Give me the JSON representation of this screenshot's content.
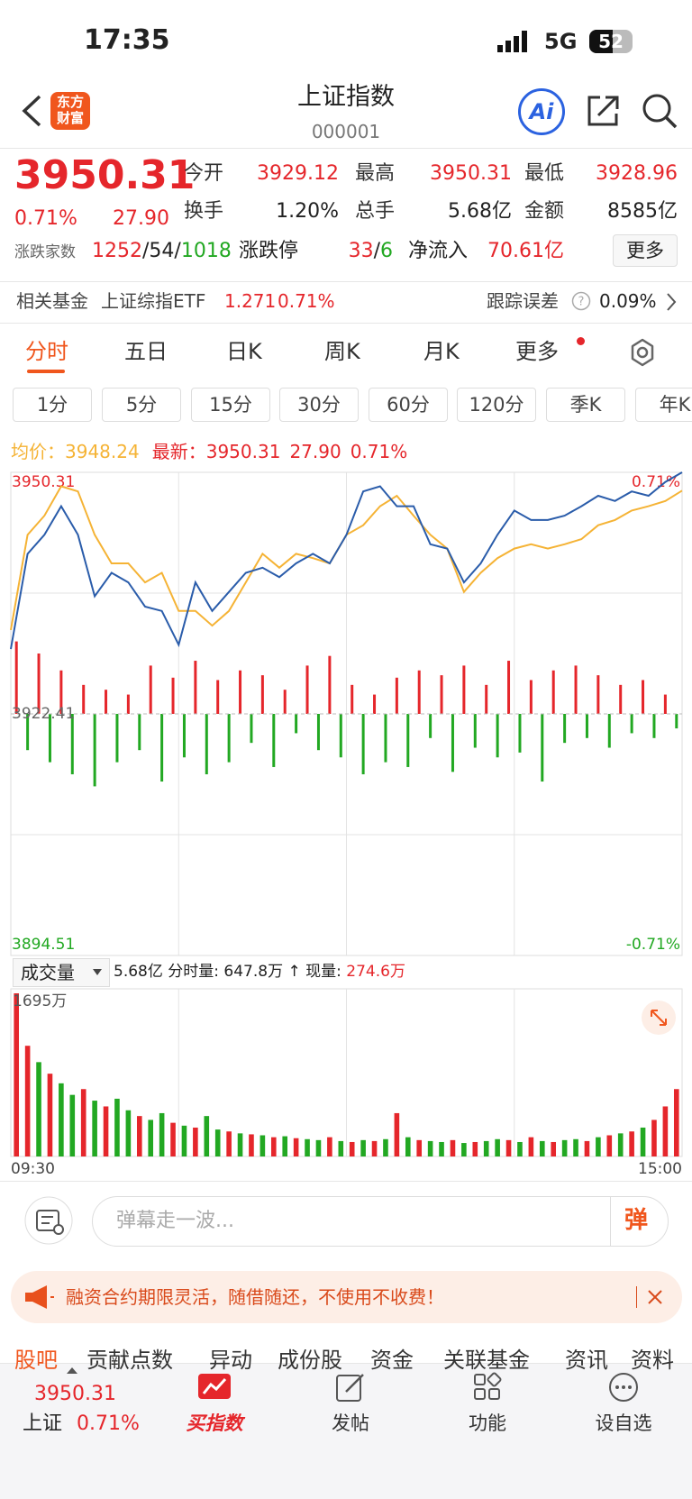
{
  "status": {
    "time": "17:35",
    "network": "5G",
    "battery": "52"
  },
  "header": {
    "logo": [
      "东方",
      "财富"
    ],
    "title": "上证指数",
    "code": "000001",
    "ai": "Ai"
  },
  "quote": {
    "price": "3950.31",
    "change_pct": "0.71%",
    "change": "27.90",
    "stats": [
      {
        "label": "今开",
        "value": "3929.12",
        "color": "#e5262b"
      },
      {
        "label": "最高",
        "value": "3950.31",
        "color": "#e5262b"
      },
      {
        "label": "最低",
        "value": "3928.96",
        "color": "#e5262b"
      },
      {
        "label": "换手",
        "value": "1.20%",
        "color": "#222222"
      },
      {
        "label": "总手",
        "value": "5.68亿",
        "color": "#222222"
      },
      {
        "label": "金额",
        "value": "8585亿",
        "color": "#222222"
      }
    ],
    "breadth_label": "涨跌家数",
    "breadth": [
      "1252",
      "/54/",
      "1018"
    ],
    "limit_label": "涨跌停",
    "limit": [
      "33",
      "/",
      "6"
    ],
    "inflow_label": "净流入",
    "inflow": "70.61亿",
    "more": "更多"
  },
  "fund": {
    "label": "相关基金",
    "name": "上证综指ETF",
    "price": "1.271",
    "pct": "0.71%",
    "err_label": "跟踪误差",
    "err": "0.09%"
  },
  "tabs": [
    "分时",
    "五日",
    "日K",
    "周K",
    "月K",
    "更多"
  ],
  "periods": [
    "1分",
    "5分",
    "15分",
    "30分",
    "60分",
    "120分",
    "季K",
    "年K"
  ],
  "legend": {
    "avg_label": "均价：",
    "avg": "3948.24",
    "last_label": "最新：",
    "last": "3950.31",
    "change": "27.90",
    "pct": "0.71%"
  },
  "chart_data": [
    {
      "type": "line",
      "x": [
        0,
        6,
        12,
        18,
        24,
        30,
        36,
        42,
        48,
        54,
        60,
        66,
        72,
        78,
        84,
        90,
        96,
        102,
        108,
        114,
        120,
        126,
        132,
        138,
        144,
        150,
        156,
        162,
        168,
        174,
        180,
        186,
        192,
        198,
        204,
        210,
        216,
        222,
        228,
        234,
        240
      ],
      "xlim": [
        0,
        240
      ],
      "xgrid": [
        60,
        120,
        180
      ],
      "ylim": [
        3894.51,
        3950.31
      ],
      "yticks": [
        3950.31,
        3922.41,
        3894.51
      ],
      "gridlines": [
        3936.36,
        3908.46
      ],
      "y2lim": [
        -0.71,
        0.71
      ],
      "y2ticks": [
        {
          "value": 0.71,
          "label": "0.71%"
        },
        {
          "value": -0.71,
          "label": "-0.71%"
        }
      ],
      "series": [
        {
          "name": "最新",
          "color": "#2a5caa",
          "values": [
            3929.9,
            3940.9,
            3943.1,
            3946.4,
            3943.1,
            3936.0,
            3938.7,
            3937.6,
            3934.8,
            3934.3,
            3930.4,
            3937.6,
            3934.3,
            3936.5,
            3938.7,
            3939.3,
            3938.2,
            3939.8,
            3940.9,
            3939.8,
            3943.1,
            3948.1,
            3948.7,
            3946.4,
            3946.4,
            3942.0,
            3941.5,
            3937.6,
            3939.8,
            3943.1,
            3945.9,
            3944.8,
            3944.8,
            3945.3,
            3946.4,
            3947.6,
            3947.0,
            3948.1,
            3947.6,
            3949.2,
            3950.31
          ]
        },
        {
          "name": "均价",
          "color": "#f5b335",
          "values": [
            3932.1,
            3943.1,
            3945.3,
            3948.7,
            3948.1,
            3943.1,
            3939.8,
            3939.8,
            3937.6,
            3938.7,
            3934.3,
            3934.3,
            3932.6,
            3934.3,
            3937.6,
            3940.9,
            3939.3,
            3940.9,
            3940.4,
            3939.8,
            3943.1,
            3944.2,
            3946.4,
            3947.6,
            3945.3,
            3943.1,
            3941.5,
            3936.5,
            3938.7,
            3940.4,
            3941.5,
            3942.0,
            3941.5,
            3942.0,
            3942.6,
            3944.2,
            3944.8,
            3945.9,
            3946.4,
            3947.0,
            3948.2
          ]
        }
      ]
    },
    {
      "type": "bar",
      "ylim": [
        -100,
        100
      ],
      "up_color": "#e5262b",
      "down_color": "#22a822",
      "values": [
        30,
        -15,
        25,
        -20,
        18,
        -25,
        12,
        -30,
        10,
        -20,
        8,
        -15,
        20,
        -28,
        15,
        -18,
        22,
        -25,
        14,
        -20,
        18,
        -12,
        16,
        -22,
        10,
        -8,
        20,
        -15,
        24,
        -18,
        12,
        -25,
        8,
        -20,
        15,
        -22,
        18,
        -10,
        16,
        -24,
        20,
        -14,
        12,
        -18,
        22,
        -16,
        14,
        -28,
        18,
        -12,
        20,
        -10,
        16,
        -14,
        12,
        -8,
        14,
        -10,
        8,
        -6
      ]
    },
    {
      "type": "bar",
      "ylim": [
        0,
        1695
      ],
      "yticks": [
        {
          "value": 1695,
          "label": "1695万"
        }
      ],
      "xlim": [
        0,
        240
      ],
      "xgrid": [
        60,
        120,
        180
      ],
      "xticks": [
        {
          "value": 0,
          "label": "09:30"
        },
        {
          "value": 240,
          "label": "15:00"
        }
      ],
      "values": [
        1695,
        1150,
        980,
        860,
        760,
        640,
        700,
        580,
        520,
        600,
        480,
        420,
        380,
        450,
        350,
        320,
        300,
        420,
        280,
        260,
        240,
        230,
        220,
        200,
        210,
        190,
        180,
        170,
        200,
        160,
        150,
        170,
        160,
        180,
        450,
        200,
        170,
        160,
        150,
        170,
        140,
        150,
        160,
        180,
        170,
        150,
        200,
        160,
        150,
        170,
        180,
        160,
        200,
        220,
        240,
        260,
        300,
        380,
        520,
        700
      ],
      "colors": [
        "#e5262b",
        "#e5262b",
        "#22a822",
        "#e5262b",
        "#22a822",
        "#22a822",
        "#e5262b",
        "#22a822",
        "#e5262b",
        "#22a822",
        "#22a822",
        "#e5262b",
        "#22a822",
        "#22a822",
        "#e5262b",
        "#22a822",
        "#e5262b",
        "#22a822",
        "#22a822",
        "#e5262b",
        "#22a822",
        "#e5262b",
        "#22a822",
        "#e5262b",
        "#22a822",
        "#e5262b",
        "#22a822",
        "#22a822",
        "#e5262b",
        "#22a822",
        "#e5262b",
        "#22a822",
        "#e5262b",
        "#22a822",
        "#e5262b",
        "#22a822",
        "#e5262b",
        "#22a822",
        "#22a822",
        "#e5262b",
        "#22a822",
        "#e5262b",
        "#22a822",
        "#22a822",
        "#e5262b",
        "#22a822",
        "#e5262b",
        "#22a822",
        "#e5262b",
        "#22a822",
        "#22a822",
        "#e5262b",
        "#22a822",
        "#e5262b",
        "#22a822",
        "#e5262b",
        "#22a822",
        "#e5262b",
        "#e5262b",
        "#e5262b"
      ]
    }
  ],
  "volume_bar": {
    "selector": "成交量",
    "total": "5.68亿",
    "interval_label": "分时量:",
    "interval": "647.8万",
    "arrow": "↑",
    "current_label": "现量:",
    "current": "274.6万"
  },
  "comment": {
    "placeholder": "弹幕走一波...",
    "button": "弹"
  },
  "banner": {
    "text": "融资合约期限灵活，随借随还，不使用不收费！"
  },
  "sections": [
    "股吧",
    "贡献点数",
    "异动",
    "成份股",
    "资金",
    "关联基金",
    "资讯",
    "资料"
  ],
  "nav": {
    "price": "3950.31",
    "name": "上证",
    "pct": "0.71%",
    "items": [
      "买指数",
      "发帖",
      "功能",
      "设自选"
    ]
  }
}
